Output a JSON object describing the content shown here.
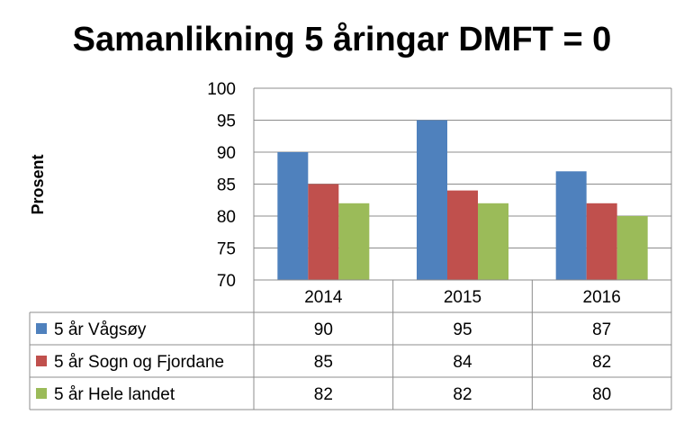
{
  "chart_data": {
    "type": "bar",
    "title": "Samanlikning 5 åringar DMFT = 0",
    "ylabel": "Prosent",
    "xlabel": "",
    "categories": [
      "2014",
      "2015",
      "2016"
    ],
    "ylim": [
      70,
      100
    ],
    "yticks": [
      "70",
      "75",
      "80",
      "85",
      "90",
      "95",
      "100"
    ],
    "grid": true,
    "legend_placement": "data-table",
    "data_table": true,
    "series": [
      {
        "name": "5 år Vågsøy",
        "color": "#4F81BD",
        "values": [
          90,
          95,
          87
        ]
      },
      {
        "name": "5 år Sogn og Fjordane",
        "color": "#C0504D",
        "values": [
          85,
          84,
          82
        ]
      },
      {
        "name": "5 år Hele landet",
        "color": "#9BBB59",
        "values": [
          82,
          82,
          80
        ]
      }
    ]
  }
}
